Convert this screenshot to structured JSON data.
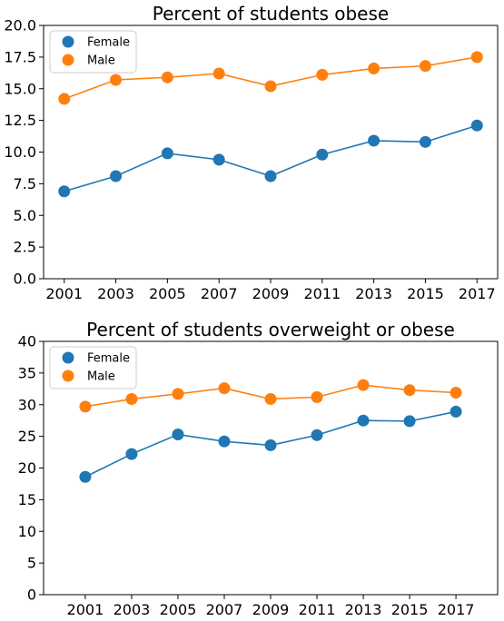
{
  "chart_data": [
    {
      "type": "line",
      "title": "Percent of students obese",
      "xlabel": "",
      "ylabel": "",
      "x": [
        2001,
        2003,
        2005,
        2007,
        2009,
        2011,
        2013,
        2015,
        2017
      ],
      "xlim": [
        2000.2,
        2017.8
      ],
      "ylim": [
        0,
        20
      ],
      "yticks": [
        "0.0",
        "2.5",
        "5.0",
        "7.5",
        "10.0",
        "12.5",
        "15.0",
        "17.5",
        "20.0"
      ],
      "grid": false,
      "legend_position": "top-left",
      "series": [
        {
          "name": "Female",
          "color": "#1f77b4",
          "values": [
            6.9,
            8.1,
            9.9,
            9.4,
            8.1,
            9.8,
            10.9,
            10.8,
            12.1
          ]
        },
        {
          "name": "Male",
          "color": "#ff7f0e",
          "values": [
            14.2,
            15.7,
            15.9,
            16.2,
            15.2,
            16.1,
            16.6,
            16.8,
            17.5
          ]
        }
      ]
    },
    {
      "type": "line",
      "title": "Percent of students overweight or obese",
      "xlabel": "",
      "ylabel": "",
      "x": [
        2001,
        2003,
        2005,
        2007,
        2009,
        2011,
        2013,
        2015,
        2017
      ],
      "xlim": [
        1999.2,
        2018.8
      ],
      "ylim": [
        0,
        40
      ],
      "yticks": [
        "0",
        "5",
        "10",
        "15",
        "20",
        "25",
        "30",
        "35",
        "40"
      ],
      "grid": false,
      "legend_position": "top-left",
      "series": [
        {
          "name": "Female",
          "color": "#1f77b4",
          "values": [
            18.6,
            22.2,
            25.3,
            24.2,
            23.6,
            25.2,
            27.5,
            27.4,
            28.9
          ]
        },
        {
          "name": "Male",
          "color": "#ff7f0e",
          "values": [
            29.7,
            30.9,
            31.7,
            32.6,
            30.9,
            31.2,
            33.1,
            32.3,
            31.9
          ]
        }
      ]
    }
  ]
}
